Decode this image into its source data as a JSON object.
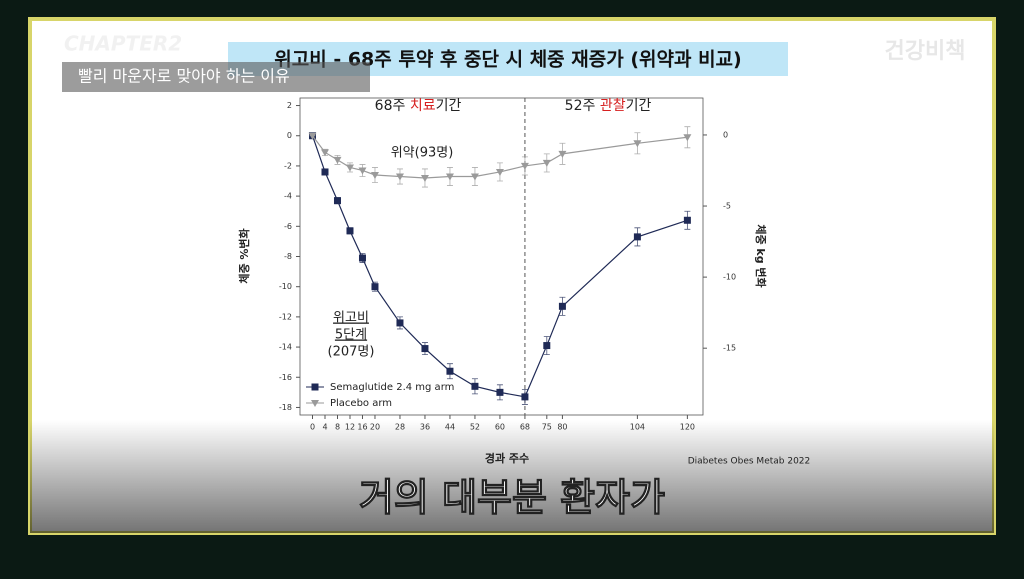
{
  "header": {
    "chapter": "CHAPTER2",
    "subtitle": "빨리 마운자로 맞아야 하는 이유",
    "watermark": "건강비책"
  },
  "caption": "거의 대부분 환자가",
  "chart_data": {
    "type": "line",
    "title": "위고비 - 68주 투약 후 중단 시 체중 재증가 (위약과 비교)",
    "xlabel": "경과 주수",
    "ylabel": "체중 %변화",
    "y2label": "체중 kg 변화",
    "source": "Diabetes Obes Metab 2022",
    "treatment_period": [
      "68주 ",
      "치료",
      "기간"
    ],
    "observation_period": [
      "52주 ",
      "관찰",
      "기간"
    ],
    "placebo_label": "위약(93명)",
    "semaglutide_label": [
      "위고비",
      "5단계",
      "(207명)"
    ],
    "phase_line": 68,
    "legend": "lower left",
    "x": [
      0,
      4,
      8,
      12,
      16,
      20,
      28,
      36,
      44,
      52,
      60,
      68,
      75,
      80,
      104,
      120
    ],
    "xlim": [
      -4,
      125
    ],
    "xticks": [
      0,
      4,
      8,
      12,
      16,
      20,
      28,
      36,
      44,
      52,
      60,
      68,
      75,
      80,
      104,
      120
    ],
    "ylim": [
      -18.5,
      2.5
    ],
    "yticks": [
      2,
      0,
      -2,
      -4,
      -6,
      -8,
      -10,
      -12,
      -14,
      -16,
      -18
    ],
    "y2lim": [
      -19.7,
      2.6
    ],
    "y2ticks": [
      0,
      -5,
      -10,
      -15
    ],
    "series": [
      {
        "name": "Semaglutide 2.4 mg arm",
        "color": "#1f2a56",
        "marker": "square",
        "values": [
          0,
          -2.4,
          -4.3,
          -6.3,
          -8.1,
          -10.0,
          -12.4,
          -14.1,
          -15.6,
          -16.6,
          -17.0,
          -17.3,
          -13.9,
          -11.3,
          -6.7,
          -5.6
        ],
        "errors": [
          0,
          0.2,
          0.2,
          0.2,
          0.3,
          0.3,
          0.4,
          0.4,
          0.5,
          0.5,
          0.5,
          0.5,
          0.6,
          0.6,
          0.6,
          0.6
        ]
      },
      {
        "name": "Placebo arm",
        "color": "#9a9a9a",
        "marker": "triangle",
        "values": [
          0,
          -1.1,
          -1.6,
          -2.1,
          -2.3,
          -2.6,
          -2.7,
          -2.8,
          -2.7,
          -2.7,
          -2.4,
          -2.0,
          -1.8,
          -1.2,
          -0.5,
          -0.1
        ],
        "errors": [
          0,
          0.2,
          0.3,
          0.3,
          0.4,
          0.5,
          0.5,
          0.6,
          0.6,
          0.6,
          0.6,
          0.6,
          0.6,
          0.7,
          0.7,
          0.7
        ]
      }
    ]
  }
}
